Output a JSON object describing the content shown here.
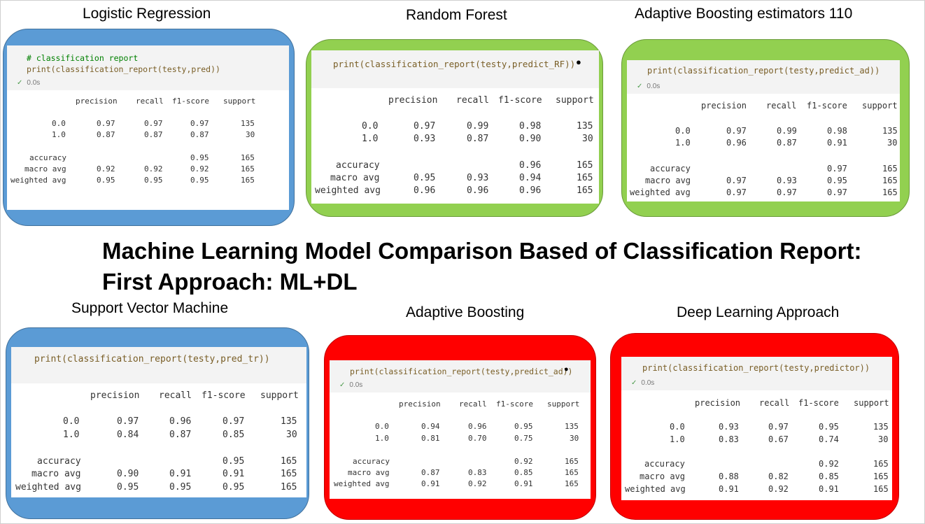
{
  "headline": {
    "line1": "Machine Learning Model Comparison Based of Classification Report:",
    "line2": "First Approach: ML+DL"
  },
  "colors": {
    "blue": "#5b9bd5",
    "green": "#92d050",
    "red": "#ff0000"
  },
  "cards": [
    {
      "title": "Logistic Regression",
      "color": "blue",
      "code_comment": "# classification report",
      "code": "print(classification_report(testy,pred))",
      "status": "0.0s",
      "bulb": false,
      "header": [
        "precision",
        "recall",
        "f1-score",
        "support"
      ],
      "rows": [
        [
          "0.0",
          "0.97",
          "0.97",
          "0.97",
          "135"
        ],
        [
          "1.0",
          "0.87",
          "0.87",
          "0.87",
          "30"
        ],
        [
          "accuracy",
          "",
          "",
          "0.95",
          "165"
        ],
        [
          "macro avg",
          "0.92",
          "0.92",
          "0.92",
          "165"
        ],
        [
          "weighted avg",
          "0.95",
          "0.95",
          "0.95",
          "165"
        ]
      ]
    },
    {
      "title": "Random Forest",
      "color": "green",
      "code_comment": "",
      "code": "print(classification_report(testy,predict_RF))",
      "status": "",
      "bulb": true,
      "header": [
        "precision",
        "recall",
        "f1-score",
        "support"
      ],
      "rows": [
        [
          "0.0",
          "0.97",
          "0.99",
          "0.98",
          "135"
        ],
        [
          "1.0",
          "0.93",
          "0.87",
          "0.90",
          "30"
        ],
        [
          "accuracy",
          "",
          "",
          "0.96",
          "165"
        ],
        [
          "macro avg",
          "0.95",
          "0.93",
          "0.94",
          "165"
        ],
        [
          "weighted avg",
          "0.96",
          "0.96",
          "0.96",
          "165"
        ]
      ]
    },
    {
      "title": "Adaptive Boosting estimators 110",
      "color": "green",
      "code_comment": "",
      "code": "print(classification_report(testy,predict_ad))",
      "status": "0.0s",
      "bulb": false,
      "header": [
        "precision",
        "recall",
        "f1-score",
        "support"
      ],
      "rows": [
        [
          "0.0",
          "0.97",
          "0.99",
          "0.98",
          "135"
        ],
        [
          "1.0",
          "0.96",
          "0.87",
          "0.91",
          "30"
        ],
        [
          "accuracy",
          "",
          "",
          "0.97",
          "165"
        ],
        [
          "macro avg",
          "0.97",
          "0.93",
          "0.95",
          "165"
        ],
        [
          "weighted avg",
          "0.97",
          "0.97",
          "0.97",
          "165"
        ]
      ]
    },
    {
      "title": "Support Vector Machine",
      "color": "blue",
      "code_comment": "",
      "code": "print(classification_report(testy,pred_tr))",
      "status": "",
      "bulb": false,
      "header": [
        "precision",
        "recall",
        "f1-score",
        "support"
      ],
      "rows": [
        [
          "0.0",
          "0.97",
          "0.96",
          "0.97",
          "135"
        ],
        [
          "1.0",
          "0.84",
          "0.87",
          "0.85",
          "30"
        ],
        [
          "accuracy",
          "",
          "",
          "0.95",
          "165"
        ],
        [
          "macro avg",
          "0.90",
          "0.91",
          "0.91",
          "165"
        ],
        [
          "weighted avg",
          "0.95",
          "0.95",
          "0.95",
          "165"
        ]
      ]
    },
    {
      "title": "Adaptive Boosting",
      "color": "red",
      "code_comment": "",
      "code": "print(classification_report(testy,predict_ad))",
      "status": "0.0s",
      "bulb": true,
      "header": [
        "precision",
        "recall",
        "f1-score",
        "support"
      ],
      "rows": [
        [
          "0.0",
          "0.94",
          "0.96",
          "0.95",
          "135"
        ],
        [
          "1.0",
          "0.81",
          "0.70",
          "0.75",
          "30"
        ],
        [
          "accuracy",
          "",
          "",
          "0.92",
          "165"
        ],
        [
          "macro avg",
          "0.87",
          "0.83",
          "0.85",
          "165"
        ],
        [
          "weighted avg",
          "0.91",
          "0.92",
          "0.91",
          "165"
        ]
      ]
    },
    {
      "title": "Deep Learning Approach",
      "color": "red",
      "code_comment": "",
      "code": "print(classification_report(testy,predictor))",
      "status": "0.0s",
      "bulb": false,
      "header": [
        "precision",
        "recall",
        "f1-score",
        "support"
      ],
      "rows": [
        [
          "0.0",
          "0.93",
          "0.97",
          "0.95",
          "135"
        ],
        [
          "1.0",
          "0.83",
          "0.67",
          "0.74",
          "30"
        ],
        [
          "accuracy",
          "",
          "",
          "0.92",
          "165"
        ],
        [
          "macro avg",
          "0.88",
          "0.82",
          "0.85",
          "165"
        ],
        [
          "weighted avg",
          "0.91",
          "0.92",
          "0.91",
          "165"
        ]
      ]
    }
  ]
}
